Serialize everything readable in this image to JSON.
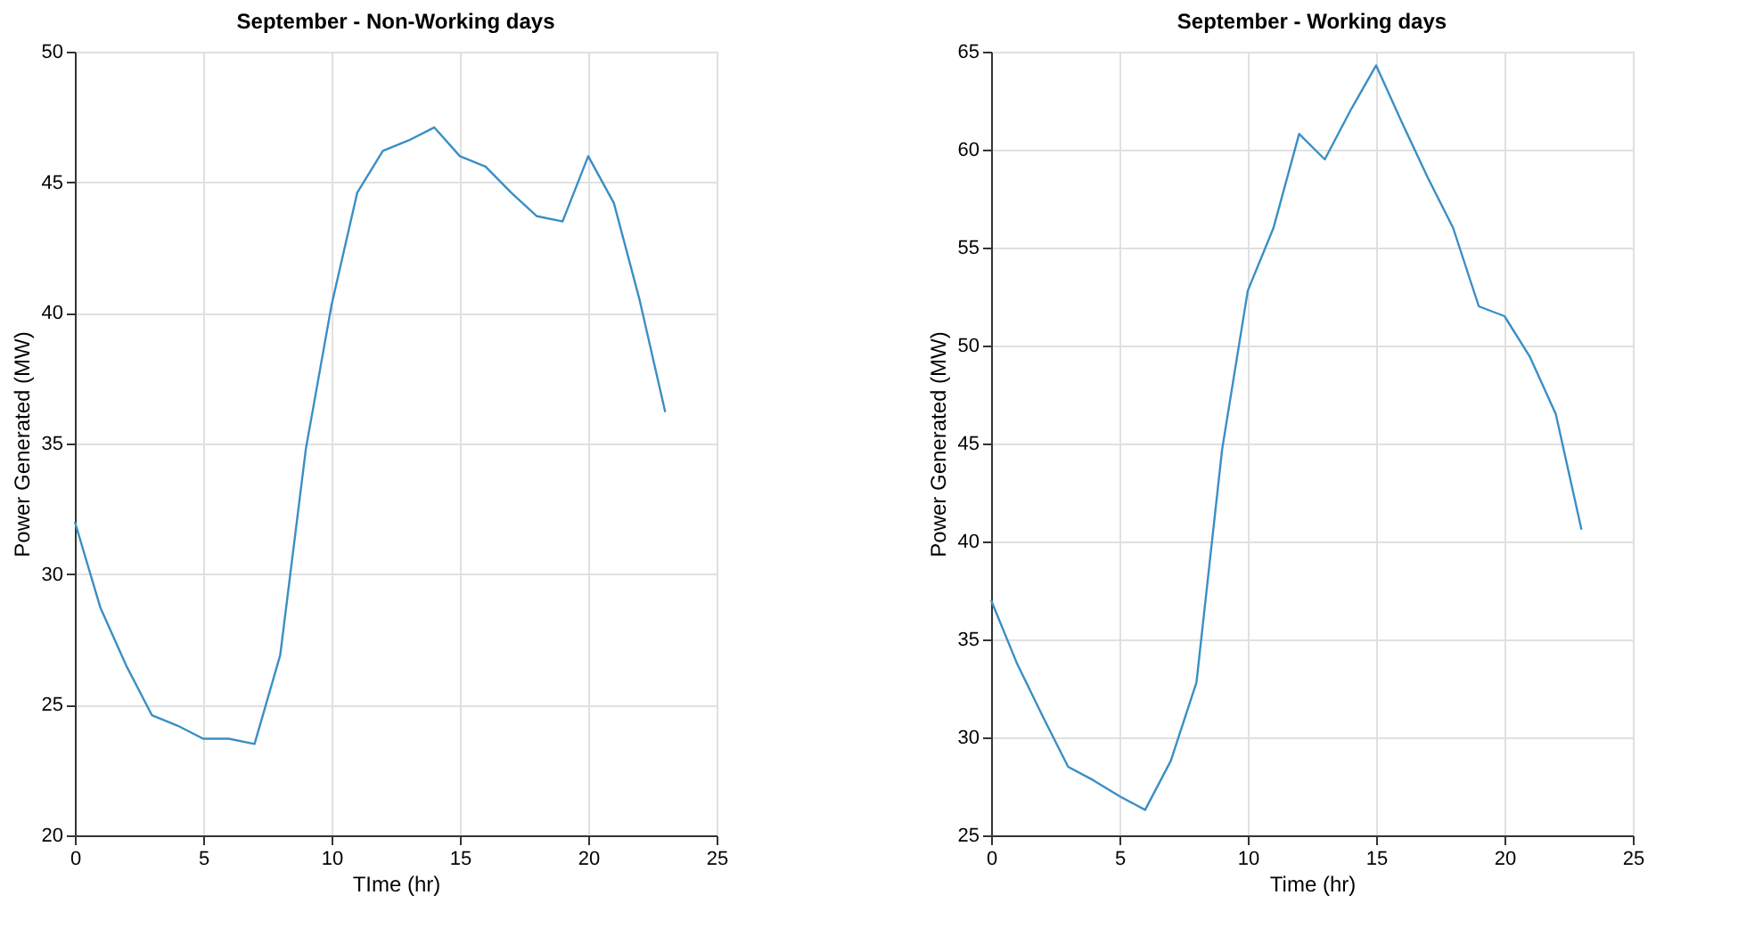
{
  "chart_data": [
    {
      "type": "line",
      "title": "September - Non-Working days",
      "xlabel": "TIme (hr)",
      "ylabel": "Power Generated (MW)",
      "x": [
        0,
        1,
        2,
        3,
        4,
        5,
        6,
        7,
        8,
        9,
        10,
        11,
        12,
        13,
        14,
        15,
        16,
        17,
        18,
        19,
        20,
        21,
        22,
        23
      ],
      "series": [
        {
          "color": "#3a8fc4",
          "values": [
            32,
            28.7,
            26.5,
            24.6,
            24.2,
            23.7,
            23.7,
            23.5,
            26.9,
            34.8,
            40.3,
            44.6,
            46.2,
            46.6,
            47.1,
            46.0,
            45.6,
            44.6,
            43.7,
            43.5,
            46.0,
            44.2,
            40.5,
            36.2
          ]
        }
      ],
      "xlim": [
        0,
        25
      ],
      "xticks": [
        0,
        5,
        10,
        15,
        20,
        25
      ],
      "ylim": [
        20,
        50
      ],
      "yticks": [
        20,
        25,
        30,
        35,
        40,
        45,
        50
      ],
      "grid": true,
      "legend": false,
      "marker": "none",
      "line_style": "solid"
    },
    {
      "type": "line",
      "title": "September - Working days",
      "xlabel": "Time (hr)",
      "ylabel": "Power Generated (MW)",
      "x": [
        0,
        1,
        2,
        3,
        4,
        5,
        6,
        7,
        8,
        9,
        10,
        11,
        12,
        13,
        14,
        15,
        16,
        17,
        18,
        19,
        20,
        21,
        22,
        23
      ],
      "series": [
        {
          "color": "#3a8fc4",
          "values": [
            37,
            33.8,
            31.1,
            28.5,
            27.8,
            27.0,
            26.3,
            28.8,
            32.8,
            44.7,
            52.8,
            56.0,
            60.8,
            59.5,
            62.0,
            64.3,
            61.4,
            58.6,
            56.0,
            52.0,
            51.5,
            49.4,
            46.5,
            40.6
          ]
        }
      ],
      "xlim": [
        0,
        25
      ],
      "xticks": [
        0,
        5,
        10,
        15,
        20,
        25
      ],
      "ylim": [
        25,
        65
      ],
      "yticks": [
        25,
        30,
        35,
        40,
        45,
        50,
        55,
        60,
        65
      ],
      "grid": true,
      "legend": false,
      "marker": "none",
      "line_style": "solid"
    }
  ]
}
